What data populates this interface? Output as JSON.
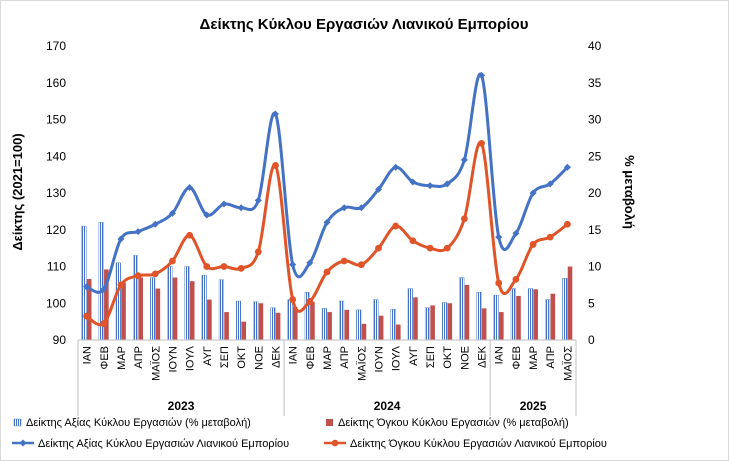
{
  "chart_data": {
    "type": "bar+line",
    "title": "Δείκτης Κύκλου Εργασιών Λιανικού Εμπορίου",
    "ylabel_left": "Δείκτης (2021=100)",
    "ylabel_right": "% μεταβολή",
    "ylim_left": [
      90,
      170
    ],
    "yticks_left": [
      90,
      100,
      110,
      120,
      130,
      140,
      150,
      160,
      170
    ],
    "ylim_right": [
      0,
      40
    ],
    "yticks_right": [
      0,
      5,
      10,
      15,
      20,
      25,
      30,
      35,
      40
    ],
    "categories": [
      "ΙΑΝ",
      "ΦΕΒ",
      "ΜΑΡ",
      "ΑΠΡ",
      "ΜΑΪΟΣ",
      "ΙΟΥΝ",
      "ΙΟΥΛ",
      "ΑΥΓ",
      "ΣΕΠ",
      "ΟΚΤ",
      "ΝΟΕ",
      "ΔΕΚ",
      "ΙΑΝ",
      "ΦΕΒ",
      "ΜΑΡ",
      "ΑΠΡ",
      "ΜΑΪΟΣ",
      "ΙΟΥΝ",
      "ΙΟΥΛ",
      "ΑΥΓ",
      "ΣΕΠ",
      "ΟΚΤ",
      "ΝΟΕ",
      "ΔΕΚ",
      "ΙΑΝ",
      "ΦΕΒ",
      "ΜΑΡ",
      "ΑΠΡ",
      "ΜΑΪΟΣ"
    ],
    "year_groups": [
      {
        "label": "2023",
        "start": 0,
        "count": 12
      },
      {
        "label": "2024",
        "start": 12,
        "count": 12
      },
      {
        "label": "2025",
        "start": 24,
        "count": 5
      }
    ],
    "series": [
      {
        "name": "Δείκτης Αξίας Κύκλου Εργασιών (% μεταβολή)",
        "kind": "bar",
        "axis": "right",
        "color": "#4472c4",
        "pattern": "hatched",
        "values": [
          15.5,
          16.0,
          10.5,
          11.5,
          8.5,
          10.0,
          10.0,
          8.8,
          8.2,
          5.3,
          5.2,
          4.4,
          5.5,
          6.5,
          4.3,
          5.3,
          4.1,
          5.5,
          4.2,
          7.0,
          4.4,
          5.1,
          8.5,
          6.5,
          6.1,
          7.0,
          7.0,
          5.5,
          8.4
        ]
      },
      {
        "name": "Δείκτης Όγκου Κύκλου Εργασιών (% μεταβολή)",
        "kind": "bar",
        "axis": "right",
        "color": "#c0504d",
        "values": [
          8.3,
          9.6,
          7.8,
          8.5,
          7.0,
          8.5,
          8.0,
          5.5,
          3.8,
          2.5,
          5.0,
          3.7,
          4.5,
          5.2,
          3.8,
          4.1,
          2.2,
          3.3,
          2.1,
          5.8,
          4.7,
          5.0,
          7.5,
          4.3,
          3.8,
          6.0,
          6.9,
          6.3,
          10.0
        ]
      },
      {
        "name": "Δείκτης Αξίας Κύκλου Εργασιών Λιανικού Εμπορίου",
        "kind": "line",
        "axis": "left",
        "color": "#4472c4",
        "marker": "diamond",
        "values": [
          104.5,
          103.8,
          117.5,
          119.5,
          121.5,
          124.5,
          131.5,
          124.0,
          127.0,
          126.0,
          128.0,
          151.5,
          110.5,
          111.0,
          122.0,
          126.0,
          126.0,
          131.0,
          137.0,
          133.0,
          132.0,
          132.5,
          139.0,
          162.0,
          118.0,
          119.0,
          130.0,
          132.5,
          137.0
        ]
      },
      {
        "name": "Δείκτης Όγκου Κύκλου Εργασιών Λιανικού Εμπορίου",
        "kind": "line",
        "axis": "left",
        "color": "#e0542a",
        "marker": "circle",
        "values": [
          96.5,
          94.5,
          105.0,
          107.5,
          108.0,
          111.5,
          118.5,
          110.0,
          110.0,
          109.5,
          114.0,
          137.5,
          101.0,
          100.5,
          108.5,
          111.5,
          110.5,
          115.0,
          121.0,
          117.0,
          115.0,
          115.0,
          123.0,
          143.5,
          105.5,
          106.5,
          116.0,
          118.0,
          121.5
        ]
      }
    ],
    "legend_position": "bottom",
    "grid": false
  }
}
